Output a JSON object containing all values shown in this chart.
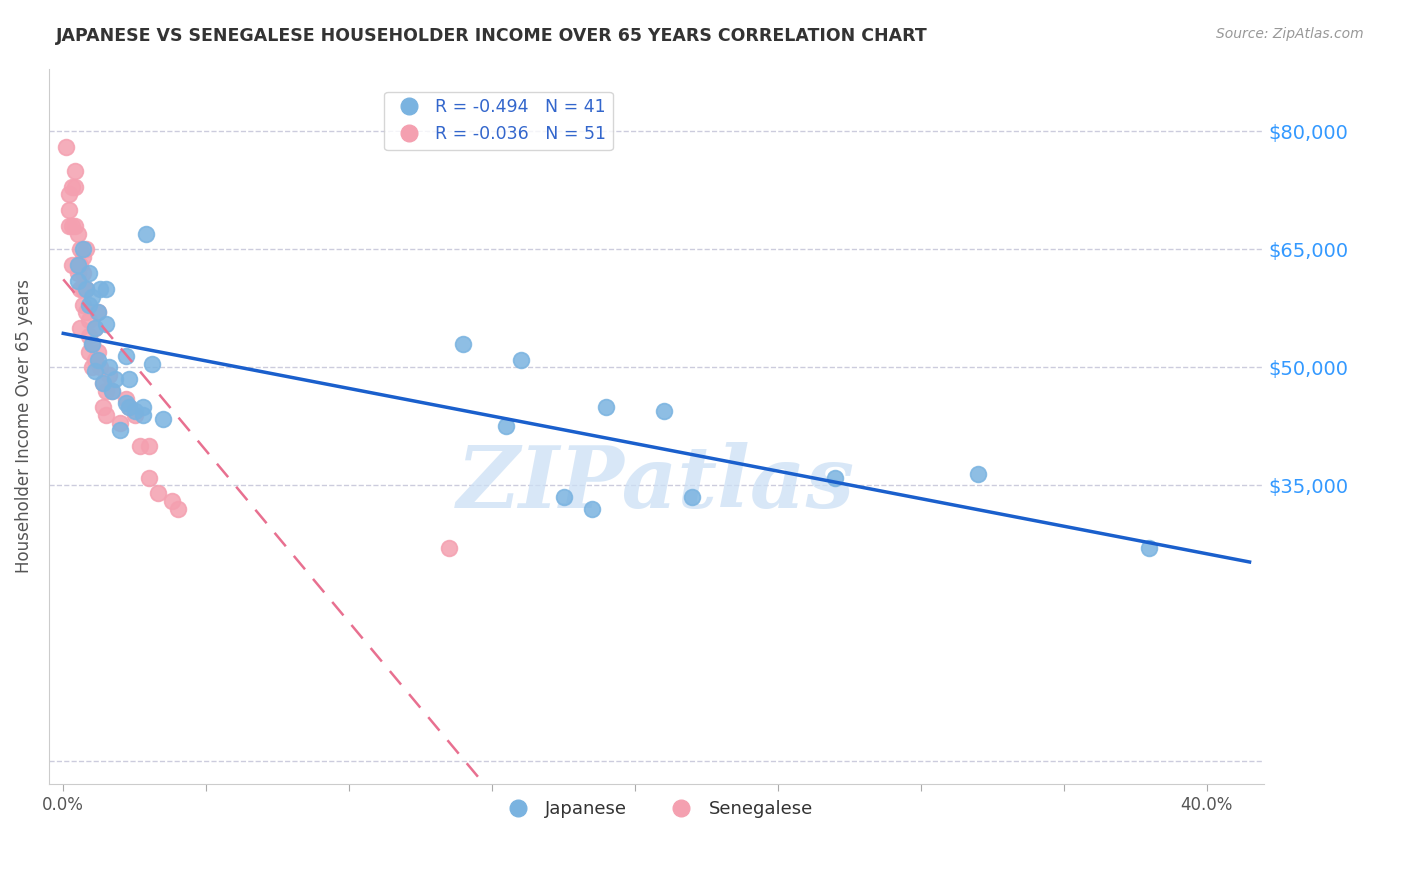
{
  "title": "JAPANESE VS SENEGALESE HOUSEHOLDER INCOME OVER 65 YEARS CORRELATION CHART",
  "source": "Source: ZipAtlas.com",
  "ylabel": "Householder Income Over 65 years",
  "japanese_R": -0.494,
  "japanese_N": 41,
  "senegalese_R": -0.036,
  "senegalese_N": 51,
  "japanese_color": "#7ab3e0",
  "senegalese_color": "#f4a0b0",
  "japanese_line_color": "#1a5fcc",
  "senegalese_line_color": "#e87090",
  "ytick_values": [
    0,
    35000,
    50000,
    65000,
    80000
  ],
  "ytick_labels_right": [
    "$35,000",
    "$50,000",
    "$65,000",
    "$80,000"
  ],
  "xtick_values": [
    0.0,
    0.05,
    0.1,
    0.15,
    0.2,
    0.25,
    0.3,
    0.35,
    0.4
  ],
  "xlim": [
    -0.005,
    0.42
  ],
  "ylim": [
    -3000,
    88000
  ],
  "japanese_x": [
    0.005,
    0.005,
    0.007,
    0.008,
    0.009,
    0.009,
    0.01,
    0.01,
    0.011,
    0.011,
    0.012,
    0.012,
    0.013,
    0.014,
    0.015,
    0.015,
    0.016,
    0.017,
    0.018,
    0.02,
    0.022,
    0.022,
    0.023,
    0.023,
    0.025,
    0.028,
    0.028,
    0.029,
    0.031,
    0.035,
    0.14,
    0.155,
    0.16,
    0.175,
    0.185,
    0.19,
    0.21,
    0.22,
    0.27,
    0.32,
    0.38
  ],
  "japanese_y": [
    63000,
    61000,
    65000,
    60000,
    62000,
    58000,
    53000,
    59000,
    49500,
    55000,
    51000,
    57000,
    60000,
    48000,
    55500,
    60000,
    50000,
    47000,
    48500,
    42000,
    51500,
    45500,
    48500,
    45000,
    44500,
    44000,
    45000,
    67000,
    50500,
    43500,
    53000,
    42500,
    51000,
    33500,
    32000,
    45000,
    44500,
    33500,
    36000,
    36500,
    27000
  ],
  "senegalese_x": [
    0.001,
    0.002,
    0.002,
    0.002,
    0.003,
    0.003,
    0.003,
    0.004,
    0.004,
    0.004,
    0.005,
    0.005,
    0.005,
    0.006,
    0.006,
    0.006,
    0.006,
    0.007,
    0.007,
    0.007,
    0.007,
    0.008,
    0.008,
    0.008,
    0.009,
    0.009,
    0.009,
    0.01,
    0.01,
    0.011,
    0.011,
    0.012,
    0.012,
    0.013,
    0.014,
    0.014,
    0.015,
    0.015,
    0.016,
    0.017,
    0.02,
    0.022,
    0.023,
    0.025,
    0.027,
    0.03,
    0.03,
    0.033,
    0.038,
    0.04,
    0.135
  ],
  "senegalese_y": [
    78000,
    72000,
    70000,
    68000,
    73000,
    68000,
    63000,
    75000,
    73000,
    68000,
    63000,
    62000,
    67000,
    65000,
    63000,
    60000,
    55000,
    64000,
    62000,
    60000,
    58000,
    65000,
    60000,
    57000,
    56000,
    54000,
    52000,
    53000,
    50000,
    55000,
    51000,
    57000,
    52000,
    50000,
    45000,
    48000,
    47000,
    44000,
    49000,
    47000,
    43000,
    46000,
    45000,
    44000,
    40000,
    40000,
    36000,
    34000,
    33000,
    32000,
    27000
  ],
  "watermark": "ZIPatlas",
  "background_color": "#ffffff",
  "grid_color": "#ccccdd",
  "title_color": "#333333",
  "axis_label_color": "#555555",
  "ytick_color": "#3399ff",
  "source_color": "#999999"
}
